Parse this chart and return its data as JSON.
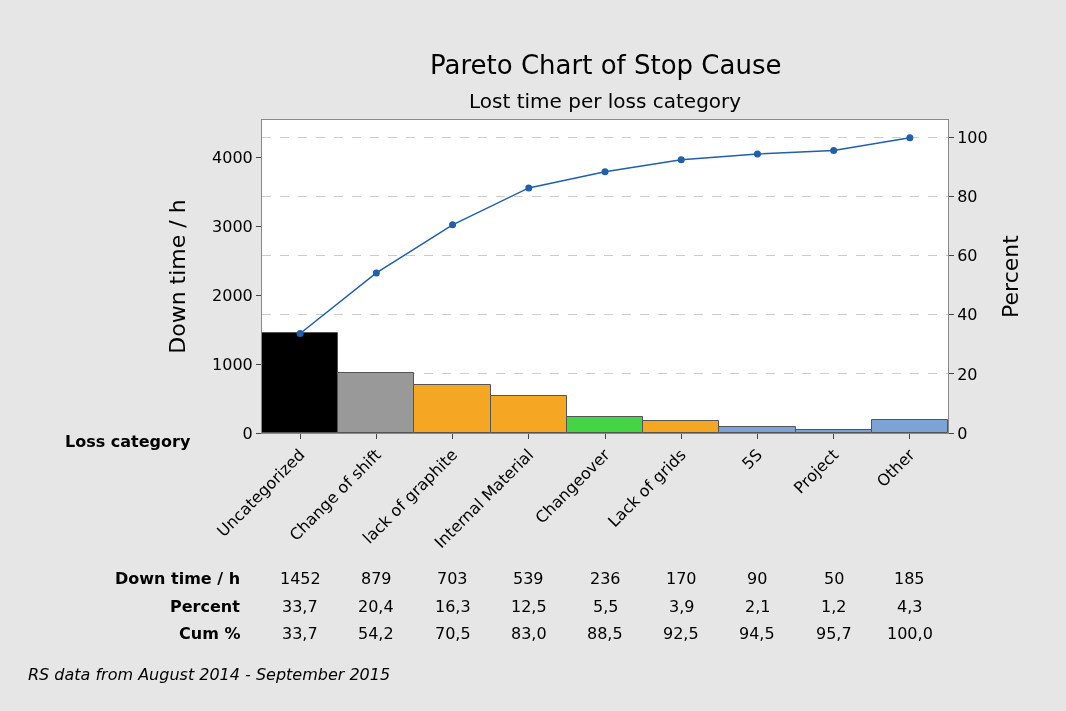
{
  "chart_data": {
    "type": "bar",
    "title": "Pareto Chart of Stop Cause",
    "subtitle": "Lost time per loss category",
    "xlabel": "Loss category",
    "ylabel": "Down time / h",
    "y2label": "Percent",
    "categories": [
      "Uncategorized",
      "Change of shift",
      "lack of graphite",
      "Internal Material",
      "Changeover",
      "Lack of grids",
      "5S",
      "Project",
      "Other"
    ],
    "series": [
      {
        "colors": [
          "#000000",
          "#999999",
          "#f5a623",
          "#f5a623",
          "#44d444",
          "#f5a623",
          "#7ba3d6",
          "#7ba3d6",
          "#7ba3d6"
        ],
        "values": [
          1452,
          879,
          703,
          539,
          236,
          170,
          90,
          50,
          185
        ],
        "value_labels": [
          "1452",
          "879",
          "703",
          "539",
          "236",
          "170",
          "90",
          "50",
          "185"
        ]
      },
      {
        "type": "line",
        "axis": "y2",
        "color": "#1f5fad",
        "marker": "circle",
        "values": [
          33.7,
          54.2,
          70.5,
          83.0,
          88.5,
          92.5,
          94.5,
          95.7,
          100.0
        ],
        "value_labels": [
          "33,7",
          "54,2",
          "70,5",
          "83,0",
          "88,5",
          "92,5",
          "94,5",
          "95,7",
          "100,0"
        ]
      }
    ],
    "annotations": [
      "Down time / h",
      "Percent",
      "Cum %",
      "33,7",
      "20,4",
      "16,3",
      "12,5",
      "5,5",
      "3,9",
      "2,1",
      "1,2",
      "4,3",
      "RS data from August 2014 - September 2015"
    ],
    "ylim": [
      0,
      4550
    ],
    "yticks": [
      0,
      1000,
      2000,
      3000,
      4000
    ],
    "y2lim": [
      0,
      106
    ],
    "y2ticks": [
      0,
      20,
      40,
      60,
      80,
      100
    ],
    "grid": "y2"
  }
}
